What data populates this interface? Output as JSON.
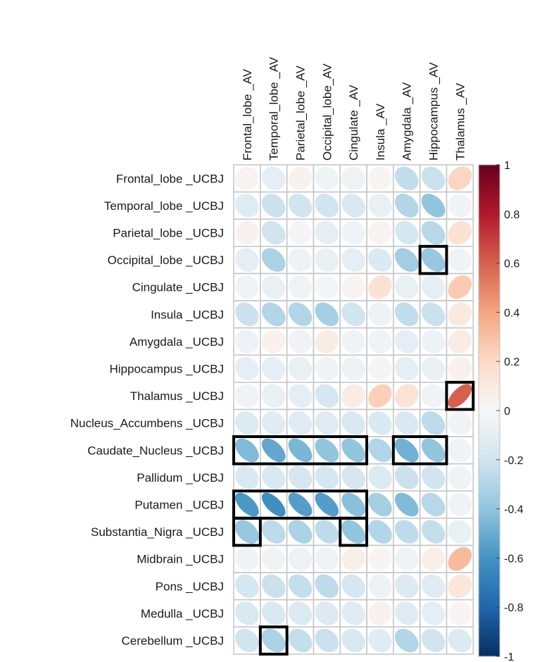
{
  "chart_data": {
    "type": "heatmap",
    "style": "correlation-ellipse",
    "columns": [
      "Frontal_lobe _AV",
      "Temporal_lobe _AV",
      "Parietal_lobe _AV",
      "Occipital_lobe_AV",
      "Cingulate _AV",
      "Insula _AV",
      "Amygdala _AV",
      "Hippocampus _AV",
      "Thalamus _AV"
    ],
    "rows": [
      "Frontal_lobe _UCBJ",
      "Temporal_lobe _UCBJ",
      "Parietal_lobe _UCBJ",
      "Occipital_lobe _UCBJ",
      "Cingulate _UCBJ",
      "Insula _UCBJ",
      "Amygdala _UCBJ",
      "Hippocampus _UCBJ",
      "Thalamus _UCBJ",
      "Nucleus_Accumbens _UCBJ",
      "Caudate_Nucleus _UCBJ",
      "Pallidum _UCBJ",
      "Putamen _UCBJ",
      "Substantia_Nigra _UCBJ",
      "Midbrain _UCBJ",
      "Pons _UCBJ",
      "Medulla _UCBJ",
      "Cerebellum _UCBJ"
    ],
    "values": [
      [
        0.03,
        -0.1,
        0.04,
        -0.05,
        -0.04,
        0.02,
        -0.25,
        -0.22,
        0.22
      ],
      [
        -0.12,
        -0.22,
        -0.2,
        -0.2,
        -0.16,
        -0.08,
        -0.3,
        -0.4,
        -0.03
      ],
      [
        0.04,
        -0.2,
        -0.02,
        -0.1,
        -0.04,
        0.03,
        -0.18,
        -0.28,
        0.15
      ],
      [
        -0.1,
        -0.32,
        -0.06,
        -0.08,
        -0.1,
        -0.15,
        -0.35,
        -0.38,
        -0.04
      ],
      [
        -0.04,
        -0.08,
        -0.04,
        -0.02,
        0.03,
        0.15,
        -0.08,
        -0.1,
        0.26
      ],
      [
        -0.22,
        -0.3,
        -0.3,
        -0.34,
        -0.2,
        -0.06,
        -0.25,
        -0.22,
        0.1
      ],
      [
        -0.06,
        0.04,
        -0.04,
        0.08,
        -0.04,
        -0.04,
        -0.1,
        -0.06,
        0.08
      ],
      [
        -0.1,
        -0.1,
        -0.08,
        -0.04,
        -0.06,
        -0.02,
        -0.1,
        -0.08,
        0.04
      ],
      [
        -0.04,
        -0.08,
        -0.1,
        -0.18,
        0.08,
        0.24,
        0.14,
        -0.04,
        0.6
      ],
      [
        -0.14,
        -0.12,
        -0.12,
        -0.12,
        -0.16,
        -0.16,
        -0.16,
        -0.26,
        -0.04
      ],
      [
        -0.44,
        -0.52,
        -0.46,
        -0.4,
        -0.4,
        -0.3,
        -0.48,
        -0.4,
        -0.04
      ],
      [
        -0.16,
        -0.16,
        -0.18,
        -0.18,
        -0.18,
        -0.14,
        -0.22,
        -0.2,
        -0.04
      ],
      [
        -0.58,
        -0.62,
        -0.56,
        -0.56,
        -0.42,
        -0.34,
        -0.44,
        -0.28,
        -0.04
      ],
      [
        -0.38,
        -0.26,
        -0.32,
        -0.26,
        -0.4,
        -0.3,
        -0.26,
        -0.24,
        -0.08
      ],
      [
        -0.04,
        -0.04,
        -0.06,
        -0.04,
        0.06,
        0.02,
        -0.04,
        0.06,
        0.32
      ],
      [
        -0.18,
        -0.22,
        -0.24,
        -0.26,
        -0.18,
        -0.06,
        -0.14,
        -0.12,
        0.12
      ],
      [
        -0.16,
        -0.16,
        -0.14,
        -0.14,
        -0.12,
        0.04,
        -0.12,
        -0.1,
        0.02
      ],
      [
        -0.2,
        -0.32,
        -0.24,
        -0.22,
        -0.16,
        -0.12,
        -0.3,
        -0.2,
        -0.14
      ]
    ],
    "highlight_boxes": [
      {
        "row": 3,
        "col_start": 7,
        "col_end": 7
      },
      {
        "row": 8,
        "col_start": 8,
        "col_end": 8
      },
      {
        "row": 10,
        "col_start": 0,
        "col_end": 4
      },
      {
        "row": 10,
        "col_start": 6,
        "col_end": 7
      },
      {
        "row": 12,
        "col_start": 0,
        "col_end": 4
      },
      {
        "row": 13,
        "col_start": 0,
        "col_end": 0
      },
      {
        "row": 13,
        "col_start": 4,
        "col_end": 4
      },
      {
        "row": 17,
        "col_start": 1,
        "col_end": 1
      }
    ],
    "color_scale": {
      "range": [
        -1,
        1
      ],
      "ticks": [
        "1",
        "0.8",
        "0.6",
        "0.4",
        "0.2",
        "0",
        "-0.2",
        "-0.4",
        "-0.6",
        "-0.8",
        "-1"
      ],
      "tick_values": [
        1,
        0.8,
        0.6,
        0.4,
        0.2,
        0,
        -0.2,
        -0.4,
        -0.6,
        -0.8,
        -1
      ],
      "colors": [
        "#053061",
        "#2166ac",
        "#4393c3",
        "#92c5de",
        "#d1e5f0",
        "#f7f7f7",
        "#fddbc7",
        "#f4a582",
        "#d6604d",
        "#b2182b",
        "#67001f"
      ]
    },
    "grid": true,
    "legend_position": "right"
  }
}
